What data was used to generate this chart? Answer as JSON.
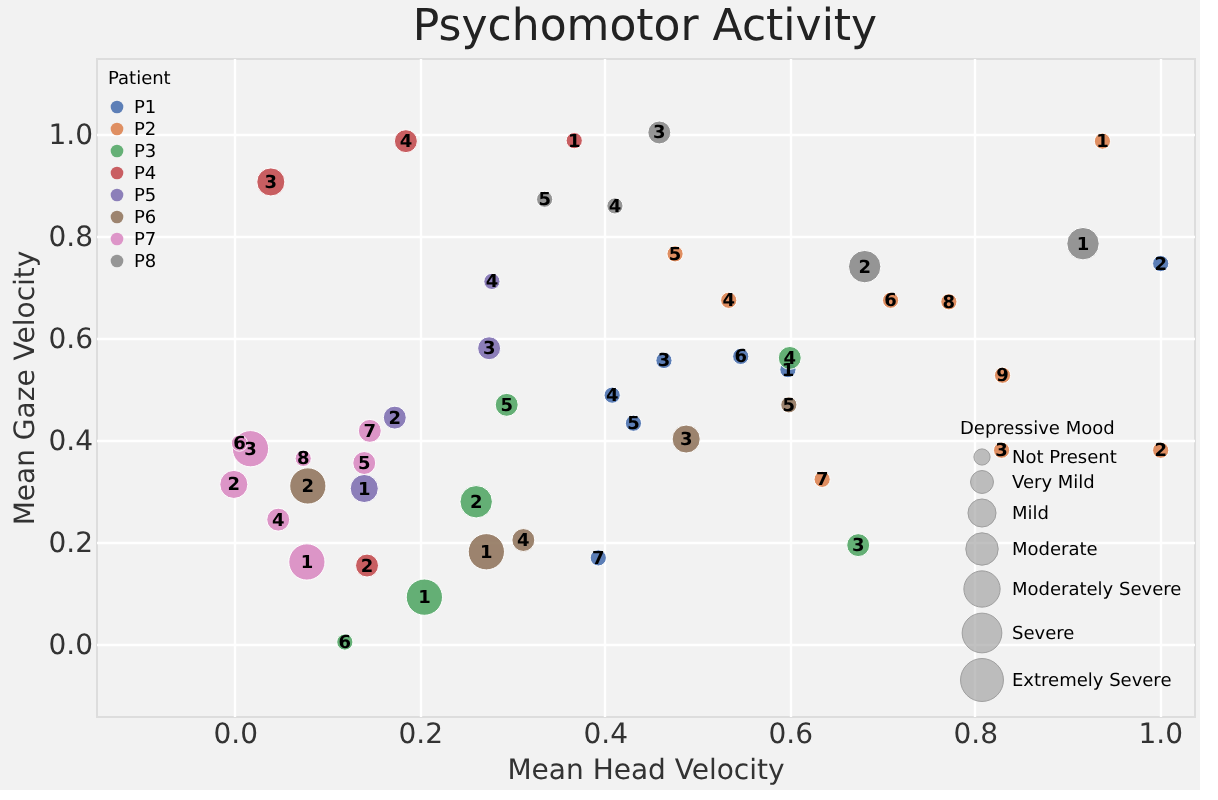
{
  "chart_data": {
    "type": "bubble",
    "title": "Psychomotor Activity",
    "xlabel": "Mean Head Velocity",
    "ylabel": "Mean Gaze Velocity",
    "legend_title": [
      "Patient",
      "Depressive Mood"
    ],
    "legend": "top left",
    "grid": true,
    "xlim": [
      -0.15,
      1.037
    ],
    "ylim": [
      -0.14,
      1.15
    ],
    "xticks": [
      {
        "value": 0,
        "label": "0.0"
      },
      {
        "value": 0.2,
        "label": "0.2"
      },
      {
        "value": 0.4,
        "label": "0.4"
      },
      {
        "value": 0.6,
        "label": "0.6"
      },
      {
        "value": 0.8,
        "label": "0.8"
      },
      {
        "value": 1,
        "label": "1.0"
      }
    ],
    "yticks": [
      {
        "value": 0,
        "label": "0.0"
      },
      {
        "value": 0.2,
        "label": "0.2"
      },
      {
        "value": 0.4,
        "label": "0.4"
      },
      {
        "value": 0.6,
        "label": "0.6"
      },
      {
        "value": 0.8,
        "label": "0.8"
      },
      {
        "value": 1,
        "label": "1.0"
      }
    ],
    "size_legend": [
      {
        "value": 1,
        "label": "Not Present"
      },
      {
        "value": 2,
        "label": "Very Mild"
      },
      {
        "value": 3,
        "label": "Mild"
      },
      {
        "value": 4,
        "label": "Moderate"
      },
      {
        "value": 5,
        "label": "Moderately Severe"
      },
      {
        "value": 6,
        "label": "Severe"
      },
      {
        "value": 7,
        "label": "Extremely Severe"
      }
    ],
    "series": [
      {
        "name": "P1",
        "color": "#4c72b0",
        "x": [
          0.598,
          1.001,
          0.464,
          0.408,
          0.431,
          0.547,
          0.393
        ],
        "values": [
          0.539,
          0.747,
          0.557,
          0.489,
          0.434,
          0.565,
          0.17
        ],
        "sizes": [
          1,
          1,
          1,
          1,
          1,
          1,
          1
        ]
      },
      {
        "name": "P2",
        "color": "#dd8452",
        "x": [
          0.938,
          1.001,
          0.829,
          0.534,
          0.476,
          0.709,
          0.635,
          0.772,
          0.83
        ],
        "values": [
          0.987,
          0.381,
          0.381,
          0.675,
          0.766,
          0.675,
          0.324,
          0.672,
          0.528
        ],
        "sizes": [
          1,
          1,
          1,
          1,
          1,
          1,
          1,
          1,
          1
        ]
      },
      {
        "name": "P3",
        "color": "#55a868",
        "x": [
          0.205,
          0.261,
          0.674,
          0.6,
          0.294,
          0.119
        ],
        "values": [
          0.093,
          0.28,
          0.195,
          0.562,
          0.47,
          0.005
        ],
        "sizes": [
          5,
          4,
          2,
          2,
          2,
          1
        ]
      },
      {
        "name": "P4",
        "color": "#c44e52",
        "x": [
          0.367,
          0.143,
          0.039,
          0.185
        ],
        "values": [
          0.988,
          0.155,
          0.907,
          0.987
        ],
        "sizes": [
          1,
          2,
          3,
          2
        ]
      },
      {
        "name": "P5",
        "color": "#8172b3",
        "x": [
          0.14,
          0.173,
          0.275,
          0.278
        ],
        "values": [
          0.306,
          0.445,
          0.581,
          0.712
        ],
        "sizes": [
          3,
          2,
          2,
          1
        ]
      },
      {
        "name": "P6",
        "color": "#937860",
        "x": [
          0.272,
          0.079,
          0.488,
          0.312,
          0.599
        ],
        "values": [
          0.182,
          0.311,
          0.403,
          0.205,
          0.47
        ],
        "sizes": [
          5,
          5,
          3,
          2,
          1
        ]
      },
      {
        "name": "P7",
        "color": "#da8bc3",
        "x": [
          0.078,
          -0.001,
          0.017,
          0.047,
          0.14,
          0.005,
          0.146,
          0.074
        ],
        "values": [
          0.162,
          0.314,
          0.384,
          0.245,
          0.356,
          0.395,
          0.419,
          0.365
        ],
        "sizes": [
          5,
          3,
          5,
          2,
          2,
          1,
          2,
          1
        ]
      },
      {
        "name": "P8",
        "color": "#8c8c8c",
        "x": [
          0.917,
          0.681,
          0.459,
          0.411,
          0.335
        ],
        "values": [
          0.786,
          0.741,
          1.004,
          0.86,
          0.873
        ],
        "sizes": [
          4,
          4,
          2,
          1,
          1
        ]
      }
    ],
    "annotations": [
      {
        "text": "1",
        "x": 0.598,
        "y": 0.539
      },
      {
        "text": "2",
        "x": 1.001,
        "y": 0.747
      },
      {
        "text": "3",
        "x": 0.464,
        "y": 0.557
      },
      {
        "text": "4",
        "x": 0.408,
        "y": 0.489
      },
      {
        "text": "5",
        "x": 0.431,
        "y": 0.434
      },
      {
        "text": "6",
        "x": 0.547,
        "y": 0.565
      },
      {
        "text": "7",
        "x": 0.393,
        "y": 0.17
      },
      {
        "text": "1",
        "x": 0.938,
        "y": 0.987
      },
      {
        "text": "2",
        "x": 1.001,
        "y": 0.381
      },
      {
        "text": "3",
        "x": 0.829,
        "y": 0.381
      },
      {
        "text": "4",
        "x": 0.534,
        "y": 0.675
      },
      {
        "text": "5",
        "x": 0.476,
        "y": 0.766
      },
      {
        "text": "6",
        "x": 0.709,
        "y": 0.675
      },
      {
        "text": "7",
        "x": 0.635,
        "y": 0.324
      },
      {
        "text": "8",
        "x": 0.772,
        "y": 0.672
      },
      {
        "text": "9",
        "x": 0.83,
        "y": 0.528
      },
      {
        "text": "1",
        "x": 0.205,
        "y": 0.093
      },
      {
        "text": "2",
        "x": 0.261,
        "y": 0.28
      },
      {
        "text": "3",
        "x": 0.674,
        "y": 0.195
      },
      {
        "text": "4",
        "x": 0.6,
        "y": 0.562
      },
      {
        "text": "5",
        "x": 0.294,
        "y": 0.47
      },
      {
        "text": "6",
        "x": 0.119,
        "y": 0.005
      },
      {
        "text": "1",
        "x": 0.367,
        "y": 0.988
      },
      {
        "text": "2",
        "x": 0.143,
        "y": 0.155
      },
      {
        "text": "3",
        "x": 0.039,
        "y": 0.907
      },
      {
        "text": "4",
        "x": 0.185,
        "y": 0.987
      },
      {
        "text": "1",
        "x": 0.14,
        "y": 0.306
      },
      {
        "text": "2",
        "x": 0.173,
        "y": 0.445
      },
      {
        "text": "3",
        "x": 0.275,
        "y": 0.581
      },
      {
        "text": "4",
        "x": 0.278,
        "y": 0.712
      },
      {
        "text": "1",
        "x": 0.272,
        "y": 0.182
      },
      {
        "text": "2",
        "x": 0.079,
        "y": 0.311
      },
      {
        "text": "3",
        "x": 0.488,
        "y": 0.403
      },
      {
        "text": "4",
        "x": 0.312,
        "y": 0.205
      },
      {
        "text": "5",
        "x": 0.599,
        "y": 0.47
      },
      {
        "text": "1",
        "x": 0.078,
        "y": 0.162
      },
      {
        "text": "2",
        "x": -0.001,
        "y": 0.314
      },
      {
        "text": "3",
        "x": 0.017,
        "y": 0.384
      },
      {
        "text": "4",
        "x": 0.047,
        "y": 0.245
      },
      {
        "text": "5",
        "x": 0.14,
        "y": 0.356
      },
      {
        "text": "6",
        "x": 0.005,
        "y": 0.395
      },
      {
        "text": "7",
        "x": 0.146,
        "y": 0.419
      },
      {
        "text": "8",
        "x": 0.074,
        "y": 0.365
      },
      {
        "text": "1",
        "x": 0.917,
        "y": 0.786
      },
      {
        "text": "2",
        "x": 0.681,
        "y": 0.741
      },
      {
        "text": "3",
        "x": 0.459,
        "y": 1.004
      },
      {
        "text": "4",
        "x": 0.411,
        "y": 0.86
      },
      {
        "text": "5",
        "x": 0.335,
        "y": 0.873
      }
    ]
  }
}
